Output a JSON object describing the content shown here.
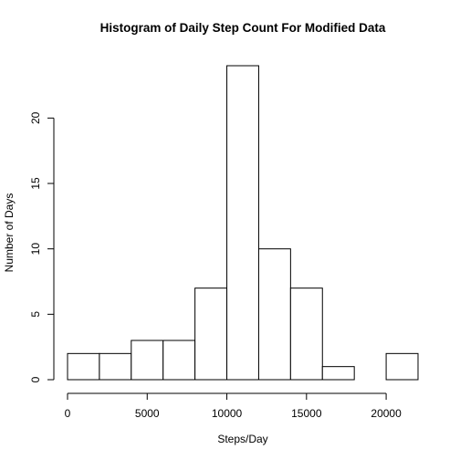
{
  "chart_data": {
    "type": "bar",
    "title": "Histogram of Daily Step Count For Modified Data",
    "xlabel": "Steps/Day",
    "ylabel": "Number of Days",
    "bins": [
      {
        "start": 0,
        "end": 2000,
        "count": 2
      },
      {
        "start": 2000,
        "end": 4000,
        "count": 2
      },
      {
        "start": 4000,
        "end": 6000,
        "count": 3
      },
      {
        "start": 6000,
        "end": 8000,
        "count": 3
      },
      {
        "start": 8000,
        "end": 10000,
        "count": 7
      },
      {
        "start": 10000,
        "end": 12000,
        "count": 24
      },
      {
        "start": 12000,
        "end": 14000,
        "count": 10
      },
      {
        "start": 14000,
        "end": 16000,
        "count": 7
      },
      {
        "start": 16000,
        "end": 18000,
        "count": 1
      },
      {
        "start": 18000,
        "end": 20000,
        "count": 0
      },
      {
        "start": 20000,
        "end": 22000,
        "count": 2
      }
    ],
    "xticks": [
      0,
      5000,
      10000,
      15000,
      20000
    ],
    "yticks": [
      0,
      5,
      10,
      15,
      20
    ],
    "xlim": [
      0,
      22000
    ],
    "ylim": [
      0,
      24
    ],
    "grid": false
  }
}
